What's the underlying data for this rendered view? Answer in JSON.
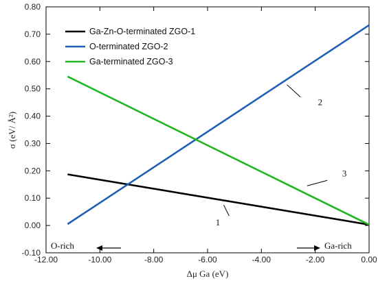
{
  "chart_data": {
    "type": "line",
    "xlabel": "Δμ Ga (eV)",
    "ylabel": "σ (eV/ Å²)",
    "xlim": [
      -12.0,
      0.0
    ],
    "ylim": [
      -0.1,
      0.8
    ],
    "x_ticks": [
      "-12.00",
      "-10.00",
      "-8.00",
      "-6.00",
      "-4.00",
      "-2.00",
      "0.00"
    ],
    "y_ticks": [
      "-0.10",
      "0.00",
      "0.10",
      "0.20",
      "0.30",
      "0.40",
      "0.50",
      "0.60",
      "0.70",
      "0.80"
    ],
    "grid": false,
    "legend_position": "top-left",
    "series": [
      {
        "name": "Ga-Zn-O-terminated ZGO-1",
        "color": "#000000",
        "x": [
          -11.2,
          0.0
        ],
        "y": [
          0.187,
          0.003
        ]
      },
      {
        "name": "O-terminated ZGO-2",
        "color": "#1f5fb5",
        "x": [
          -11.2,
          0.0
        ],
        "y": [
          0.005,
          0.733
        ]
      },
      {
        "name": "Ga-terminated ZGO-3",
        "color": "#21b521",
        "x": [
          -11.2,
          0.0
        ],
        "y": [
          0.545,
          0.003
        ]
      }
    ],
    "annotations": [
      {
        "text": "1",
        "x": -5.7,
        "y": 0.0,
        "lx1": -5.2,
        "ly1": 0.035,
        "lx2": -5.4,
        "ly2": 0.075
      },
      {
        "text": "2",
        "x": -1.9,
        "y": 0.44,
        "lx1": -2.55,
        "ly1": 0.47,
        "lx2": -3.05,
        "ly2": 0.515
      },
      {
        "text": "3",
        "x": -1.0,
        "y": 0.18,
        "lx1": -1.55,
        "ly1": 0.165,
        "lx2": -2.3,
        "ly2": 0.145
      }
    ],
    "region_labels": [
      {
        "text": "O-rich",
        "arrow": "left"
      },
      {
        "text": "Ga-rich",
        "arrow": "right"
      }
    ]
  }
}
